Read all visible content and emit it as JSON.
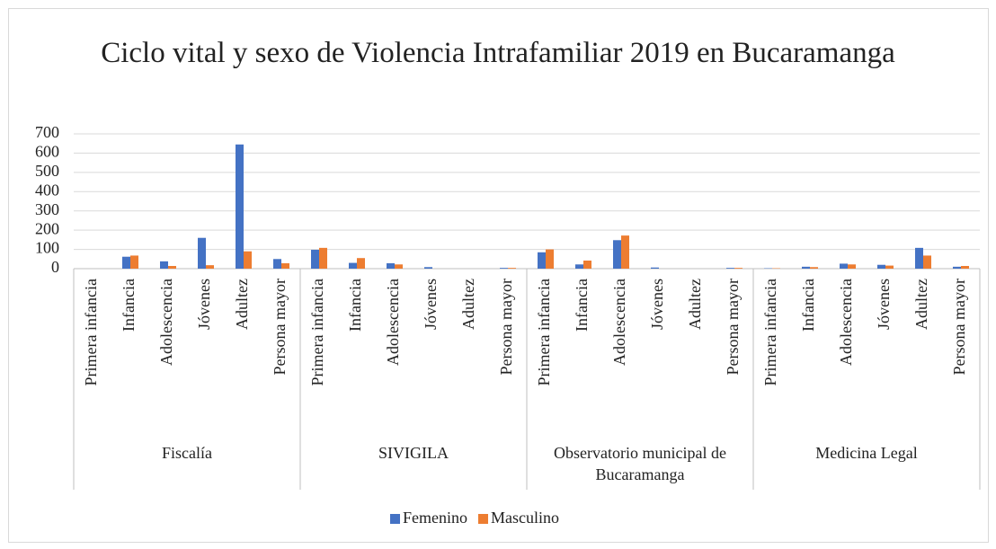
{
  "chart_data": {
    "type": "bar",
    "title": "Ciclo vital y sexo de Violencia Intrafamiliar 2019 en Bucaramanga",
    "categories": [
      "Primera infancia",
      "Infancia",
      "Adolescencia",
      "Jóvenes",
      "Adultez",
      "Persona mayor",
      "Primera infancia",
      "Infancia",
      "Adolescencia",
      "Jóvenes",
      "Adultez",
      "Persona mayor",
      "Primera infancia",
      "Infancia",
      "Adolescencia",
      "Jóvenes",
      "Adultez",
      "Persona mayor",
      "Primera infancia",
      "Infancia",
      "Adolescencia",
      "Jóvenes",
      "Adultez",
      "Persona mayor"
    ],
    "groups": [
      "Fiscalía",
      "SIVIGILA",
      "Observatorio municipal de Bucaramanga",
      "Medicina Legal"
    ],
    "series": [
      {
        "name": "Femenino",
        "color": "#4472c4",
        "values": [
          0,
          62,
          38,
          160,
          645,
          50,
          98,
          30,
          28,
          8,
          0,
          4,
          85,
          22,
          148,
          6,
          0,
          4,
          2,
          10,
          26,
          20,
          108,
          10
        ]
      },
      {
        "name": "Masculino",
        "color": "#ed7d31",
        "values": [
          0,
          68,
          14,
          18,
          90,
          28,
          108,
          55,
          22,
          0,
          0,
          4,
          100,
          42,
          172,
          0,
          0,
          4,
          2,
          8,
          22,
          16,
          68,
          14
        ]
      }
    ],
    "ylim": [
      0,
      700
    ],
    "yticks": [
      0,
      100,
      200,
      300,
      400,
      500,
      600,
      700
    ],
    "grid": true,
    "legend": "bottom"
  }
}
